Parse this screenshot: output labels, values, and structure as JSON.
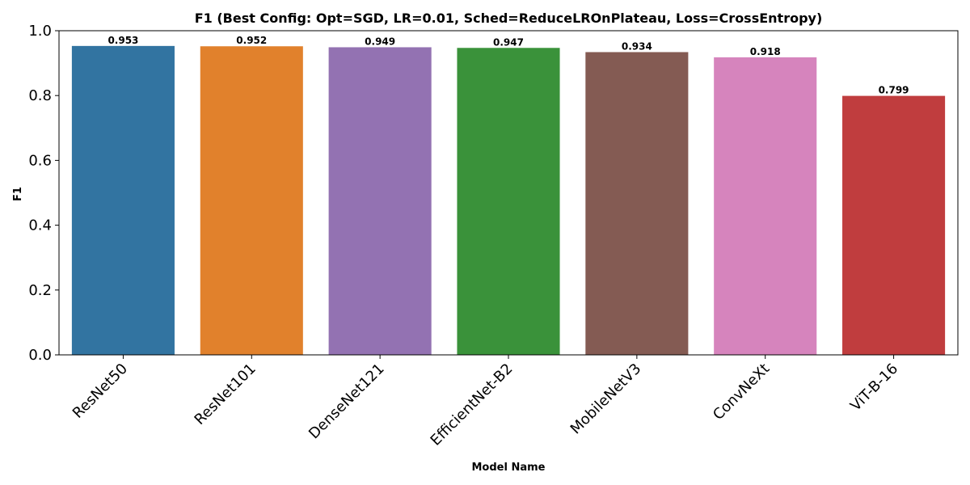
{
  "chart_data": {
    "type": "bar",
    "title": "F1 (Best Config: Opt=SGD, LR=0.01, Sched=ReduceLROnPlateau, Loss=CrossEntropy)",
    "xlabel": "Model Name",
    "ylabel": "F1",
    "categories": [
      "ResNet50",
      "ResNet101",
      "DenseNet121",
      "EfficientNet-B2",
      "MobileNetV3",
      "ConvNeXt",
      "ViT-B-16"
    ],
    "values": [
      0.953,
      0.952,
      0.949,
      0.947,
      0.934,
      0.918,
      0.799
    ],
    "data_labels": [
      "0.953",
      "0.952",
      "0.949",
      "0.947",
      "0.934",
      "0.918",
      "0.799"
    ],
    "colors": [
      "#3274a1",
      "#e1812c",
      "#9372b2",
      "#3a923a",
      "#845b53",
      "#d684bd",
      "#c03d3e"
    ],
    "yticks": [
      0.0,
      0.2,
      0.4,
      0.6,
      0.8,
      1.0
    ],
    "ytick_labels": [
      "0.0",
      "0.2",
      "0.4",
      "0.6",
      "0.8",
      "1.0"
    ],
    "ylim": [
      0,
      1.0
    ],
    "grid": false,
    "legend": "none"
  }
}
